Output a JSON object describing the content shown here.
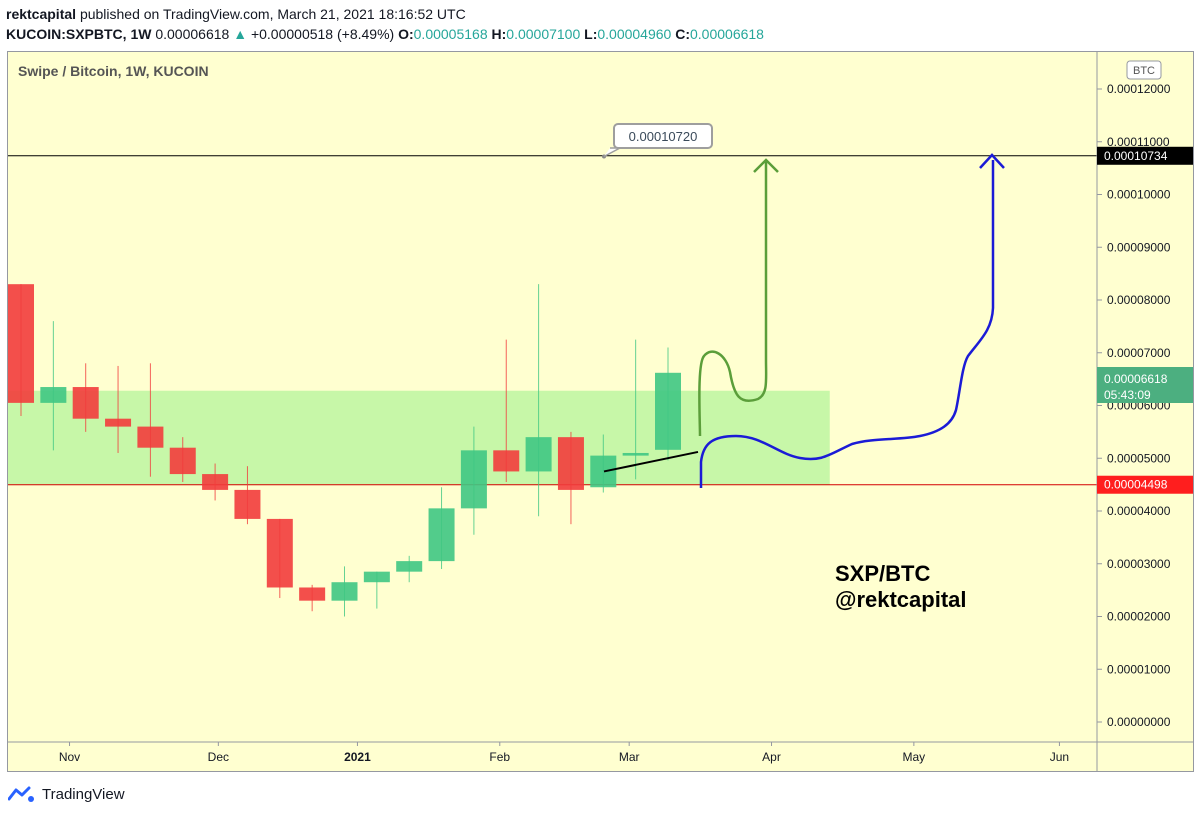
{
  "header": {
    "author": "rektcapital",
    "published": "published on TradingView.com, March 21, 2021 18:16:52 UTC",
    "symbol": "KUCOIN:SXPBTC, 1W",
    "last": "0.00006618",
    "change_arrow": "▲",
    "change": "+0.00000518 (+8.49%)",
    "o_label": "O:",
    "o": "0.00005168",
    "h_label": "H:",
    "h": "0.00007100",
    "l_label": "L:",
    "l": "0.00004960",
    "c_label": "C:",
    "c": "0.00006618"
  },
  "chart_data": {
    "type": "candlestick",
    "title": "Swipe / Bitcoin, 1W, KUCOIN",
    "currency_badge": "BTC",
    "y_ticks": [
      0.0,
      1e-05,
      2e-05,
      3e-05,
      4e-05,
      5e-05,
      6e-05,
      7e-05,
      8e-05,
      9e-05,
      0.0001,
      0.00011,
      0.00012
    ],
    "y_tick_labels": [
      "0.00000000",
      "0.00001000",
      "0.00002000",
      "0.00003000",
      "0.00004000",
      "0.00005000",
      "0.00006000",
      "0.00007000",
      "0.00008000",
      "0.00009000",
      "0.00010000",
      "0.00011000",
      "0.00012000"
    ],
    "x_labels": [
      {
        "label": "Nov",
        "week": 1.5
      },
      {
        "label": "Dec",
        "week": 6.1
      },
      {
        "label": "2021",
        "week": 10.4,
        "bold": true
      },
      {
        "label": "Feb",
        "week": 14.8
      },
      {
        "label": "Mar",
        "week": 18.8
      },
      {
        "label": "Apr",
        "week": 23.2
      },
      {
        "label": "May",
        "week": 27.6
      },
      {
        "label": "Jun",
        "week": 32.1
      }
    ],
    "candles": [
      {
        "o": 8.3e-05,
        "h": 8.3e-05,
        "l": 5.8e-05,
        "c": 6.05e-05
      },
      {
        "o": 6.05e-05,
        "h": 7.6e-05,
        "l": 5.15e-05,
        "c": 6.35e-05
      },
      {
        "o": 6.35e-05,
        "h": 6.8e-05,
        "l": 5.5e-05,
        "c": 5.75e-05
      },
      {
        "o": 5.75e-05,
        "h": 6.75e-05,
        "l": 5.1e-05,
        "c": 5.6e-05
      },
      {
        "o": 5.6e-05,
        "h": 6.8e-05,
        "l": 4.65e-05,
        "c": 5.2e-05
      },
      {
        "o": 5.2e-05,
        "h": 5.4e-05,
        "l": 4.55e-05,
        "c": 4.7e-05
      },
      {
        "o": 4.7e-05,
        "h": 4.9e-05,
        "l": 4.2e-05,
        "c": 4.4e-05
      },
      {
        "o": 4.4e-05,
        "h": 4.85e-05,
        "l": 3.75e-05,
        "c": 3.85e-05
      },
      {
        "o": 3.85e-05,
        "h": 3.85e-05,
        "l": 2.35e-05,
        "c": 2.55e-05
      },
      {
        "o": 2.55e-05,
        "h": 2.6e-05,
        "l": 2.1e-05,
        "c": 2.3e-05
      },
      {
        "o": 2.3e-05,
        "h": 2.95e-05,
        "l": 2e-05,
        "c": 2.65e-05
      },
      {
        "o": 2.65e-05,
        "h": 2.85e-05,
        "l": 2.15e-05,
        "c": 2.85e-05
      },
      {
        "o": 2.85e-05,
        "h": 3.15e-05,
        "l": 2.65e-05,
        "c": 3.05e-05
      },
      {
        "o": 3.05e-05,
        "h": 4.45e-05,
        "l": 2.9e-05,
        "c": 4.05e-05
      },
      {
        "o": 4.05e-05,
        "h": 5.6e-05,
        "l": 3.55e-05,
        "c": 5.15e-05
      },
      {
        "o": 5.15e-05,
        "h": 7.25e-05,
        "l": 4.55e-05,
        "c": 4.75e-05
      },
      {
        "o": 4.75e-05,
        "h": 8.3e-05,
        "l": 3.9e-05,
        "c": 5.4e-05
      },
      {
        "o": 5.4e-05,
        "h": 5.5e-05,
        "l": 3.75e-05,
        "c": 4.4e-05
      },
      {
        "o": 4.45e-05,
        "h": 5.45e-05,
        "l": 4.35e-05,
        "c": 5.05e-05
      },
      {
        "o": 5.05e-05,
        "h": 7.25e-05,
        "l": 4.6e-05,
        "c": 5.1e-05
      },
      {
        "o": 5.16e-05,
        "h": 7.1e-05,
        "l": 4.96e-05,
        "c": 6.62e-05
      }
    ],
    "resistance_level": 0.00010734,
    "resistance_label": "0.00010734",
    "support_level": 4.498e-05,
    "support_label": "0.00004498",
    "callout_label": "0.00010720",
    "callout_value": 0.0001072,
    "last_price_label": "0.00006618",
    "countdown_label": "05:43:09",
    "zone": {
      "low": 4.498e-05,
      "high": 6.28e-05,
      "week_start": -1,
      "week_end": 25
    },
    "annotation": [
      "SXP/BTC",
      "@rektcapital"
    ],
    "colors": {
      "up": "#3fc783",
      "down": "#f23c3c",
      "overlap": "#c9621f",
      "zone": "#c7f7a8",
      "plot_bg": "#ffffd0",
      "resistance": "#000000",
      "support": "#d30000",
      "green_arrow": "#5b9e3a",
      "blue_arrow": "#1b1bd6"
    }
  },
  "footer": {
    "brand": "TradingView"
  }
}
